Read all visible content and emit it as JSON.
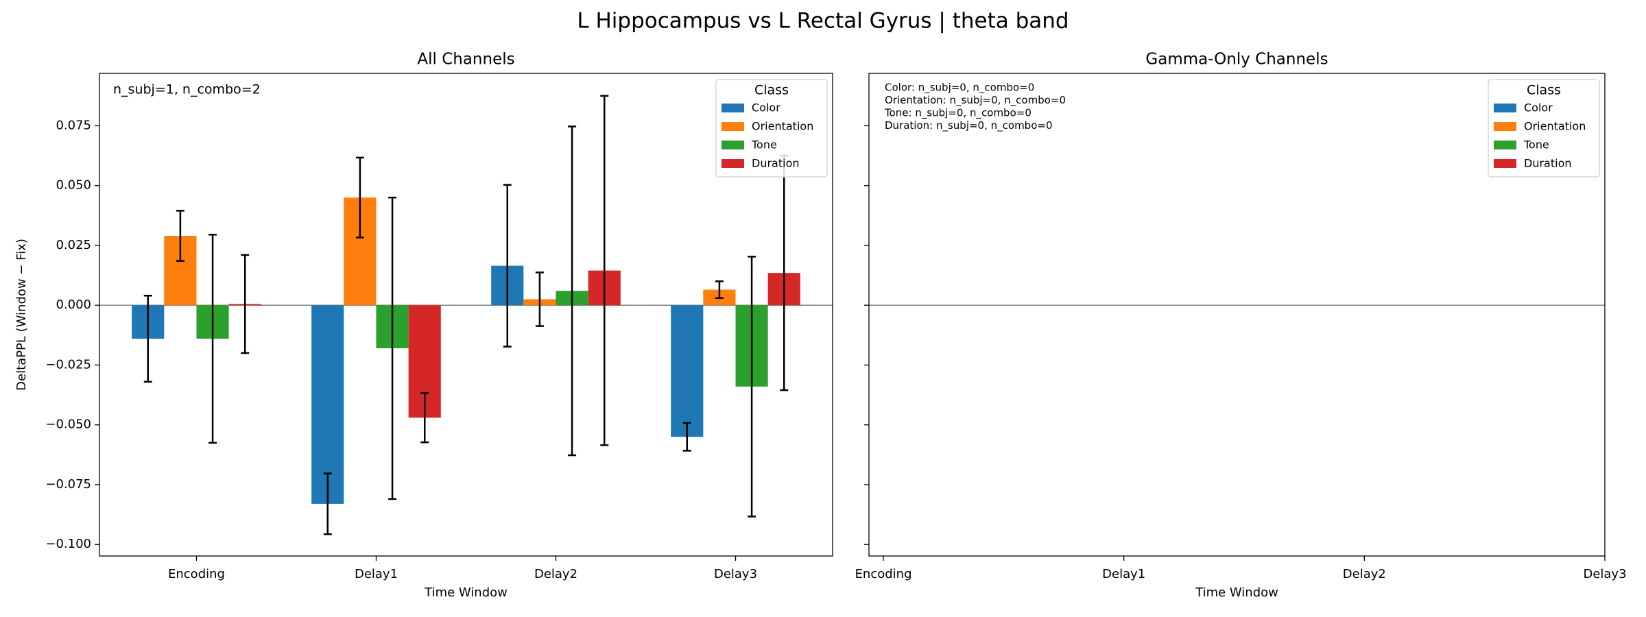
{
  "title": "L Hippocampus vs L Rectal Gyrus  |  theta band",
  "chart_data": [
    {
      "type": "bar",
      "title": "All Channels",
      "xlabel": "Time Window",
      "ylabel": "DeltaPPL (Window − Fix)",
      "categories": [
        "Encoding",
        "Delay1",
        "Delay2",
        "Delay3"
      ],
      "xlim": [
        -0.54,
        3.54
      ],
      "ylim": [
        -0.1048,
        0.0969
      ],
      "yticks": [
        {
          "value": -0.1,
          "label": "−0.100"
        },
        {
          "value": -0.075,
          "label": "−0.075"
        },
        {
          "value": -0.05,
          "label": "−0.050"
        },
        {
          "value": -0.025,
          "label": "−0.025"
        },
        {
          "value": 0,
          "label": "0.000"
        },
        0.025,
        {
          "value": 0.05,
          "label": "0.050"
        },
        0.075
      ],
      "show_ytick_labels": true,
      "legend_title": "Class",
      "legend": "upper right",
      "annotations": [
        "n_subj=1, n_combo=2"
      ],
      "series": [
        {
          "name": "Color",
          "color": "#1f77b4",
          "values": [
            -0.014,
            -0.083,
            0.0165,
            -0.055
          ],
          "errors": [
            0.018,
            0.0127,
            0.0338,
            0.0058
          ]
        },
        {
          "name": "Orientation",
          "color": "#ff7f0e",
          "values": [
            0.029,
            0.045,
            0.0025,
            0.0065
          ],
          "errors": [
            0.0105,
            0.0167,
            0.0112,
            0.0035
          ]
        },
        {
          "name": "Tone",
          "color": "#2ca02c",
          "values": [
            -0.014,
            -0.018,
            0.006,
            -0.034
          ],
          "errors": [
            0.0435,
            0.063,
            0.0687,
            0.0543
          ]
        },
        {
          "name": "Duration",
          "color": "#d62728",
          "values": [
            0.0005,
            -0.047,
            0.0145,
            0.0135
          ],
          "errors": [
            0.0205,
            0.0103,
            0.073,
            0.049
          ]
        }
      ]
    },
    {
      "type": "bar",
      "title": "Gamma-Only Channels",
      "xlabel": "Time Window",
      "categories": [
        "Encoding",
        "Delay1",
        "Delay2",
        "Delay3"
      ],
      "xlim": [
        -0.06,
        3.0
      ],
      "ylim": [
        -0.1048,
        0.0969
      ],
      "yticks": [
        -0.1,
        -0.075,
        -0.05,
        -0.025,
        0,
        0.025,
        0.05,
        0.075
      ],
      "show_ytick_labels": false,
      "legend_title": "Class",
      "legend": "upper right",
      "annotations": [
        "Color: n_subj=0, n_combo=0",
        "Orientation: n_subj=0, n_combo=0",
        "Tone: n_subj=0, n_combo=0",
        "Duration: n_subj=0, n_combo=0"
      ],
      "series": [
        {
          "name": "Color",
          "color": "#1f77b4",
          "values": [
            null,
            null,
            null,
            null
          ],
          "errors": [
            null,
            null,
            null,
            null
          ]
        },
        {
          "name": "Orientation",
          "color": "#ff7f0e",
          "values": [
            null,
            null,
            null,
            null
          ],
          "errors": [
            null,
            null,
            null,
            null
          ]
        },
        {
          "name": "Tone",
          "color": "#2ca02c",
          "values": [
            null,
            null,
            null,
            null
          ],
          "errors": [
            null,
            null,
            null,
            null
          ]
        },
        {
          "name": "Duration",
          "color": "#d62728",
          "values": [
            null,
            null,
            null,
            null
          ],
          "errors": [
            null,
            null,
            null,
            null
          ]
        }
      ]
    }
  ]
}
